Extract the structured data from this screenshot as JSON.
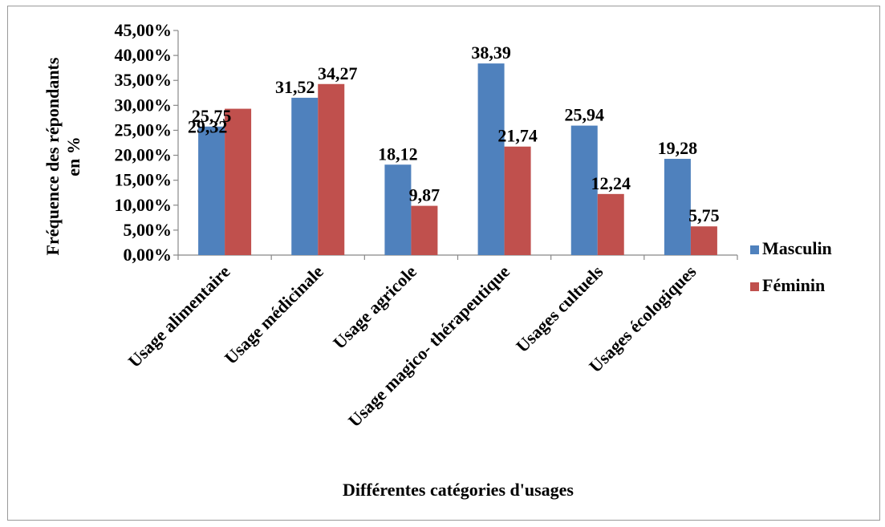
{
  "chart_data": {
    "type": "bar",
    "categories": [
      "Usage alimentaire",
      "Usage médicinale",
      "Usage agricole",
      "Usage magico- thérapeutique",
      "Usages cultuels",
      "Usages écologiques"
    ],
    "series": [
      {
        "name": "Masculin",
        "values": [
          25.75,
          31.52,
          18.12,
          38.39,
          25.94,
          19.28
        ],
        "labels": [
          "25,75",
          "31,52",
          "18,12",
          "38,39",
          "25,94",
          "19,28"
        ],
        "color": "#4f81bd"
      },
      {
        "name": "Féminin",
        "values": [
          29.32,
          34.27,
          9.87,
          21.74,
          12.24,
          5.75
        ],
        "labels": [
          "29,32",
          "34,27",
          "9,87",
          "21,74",
          "12,24",
          "5,75"
        ],
        "color": "#c0504d"
      }
    ],
    "ylabel": "Fréquence des répondants en %",
    "ylabel_lines": [
      "Fréquence des répondants",
      "en %"
    ],
    "xlabel": "Différentes catégories d'usages",
    "ylim": [
      0,
      45
    ],
    "yticks": [
      0,
      5,
      10,
      15,
      20,
      25,
      30,
      35,
      40,
      45
    ],
    "ytick_labels": [
      "0,00%",
      "5,00%",
      "10,00%",
      "15,00%",
      "20,00%",
      "25,00%",
      "30,00%",
      "35,00%",
      "40,00%",
      "45,00%"
    ],
    "grid": false,
    "legend_position": "right"
  }
}
